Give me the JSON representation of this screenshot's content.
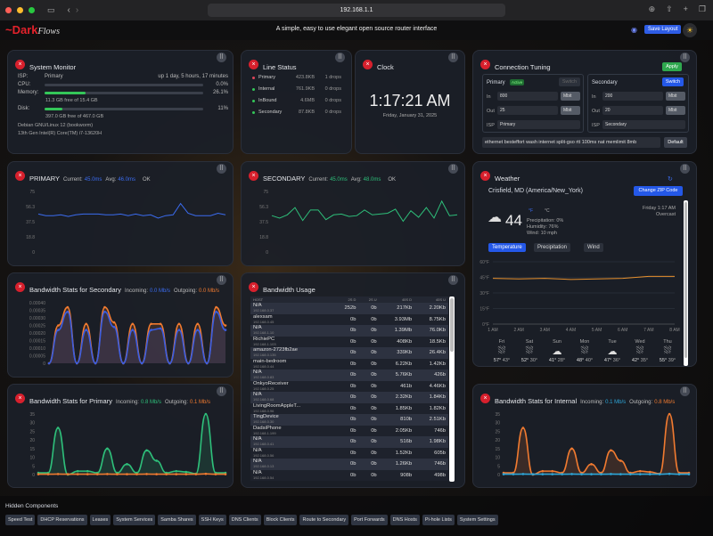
{
  "browser": {
    "url": "192.168.1.1"
  },
  "header": {
    "logo_red": "Dark",
    "logo_white": "Flows",
    "tagline": "A simple, easy to use elegant open source router interface",
    "save_layout": "Save Layout"
  },
  "system_monitor": {
    "title": "System Monitor",
    "isp_label": "ISP:",
    "isp_value": "Primary",
    "uptime": "up 1 day, 5 hours, 17 minutes",
    "cpu_label": "CPU:",
    "cpu_value": "0.0%",
    "cpu_percent": 0,
    "memory_label": "Memory:",
    "memory_value": "26.1%",
    "memory_percent": 26.1,
    "memory_sub": "11.3 GB free of 15.4 GB",
    "disk_label": "Disk:",
    "disk_value": "11%",
    "disk_percent": 11,
    "disk_sub": "397.0 GB free of 467.0 GB",
    "os": "Debian GNU/Linux 12 (bookworm)",
    "cpu_model": "13th Gen Intel(R) Core(TM) i7-13620H"
  },
  "line_status": {
    "title": "Line Status",
    "lines": [
      {
        "name": "Primary",
        "traffic": "423.8KB",
        "drops": "1 drops",
        "color": "#e0455a"
      },
      {
        "name": "Internal",
        "traffic": "761.9KB",
        "drops": "0 drops",
        "color": "#34c759"
      },
      {
        "name": "InBound",
        "traffic": "4.6MB",
        "drops": "0 drops",
        "color": "#34c759"
      },
      {
        "name": "Secondary",
        "traffic": "87.8KB",
        "drops": "0 drops",
        "color": "#34c759"
      }
    ]
  },
  "clock": {
    "title": "Clock",
    "time": "1:17:21 AM",
    "date": "Friday, January 31, 2025"
  },
  "tuning": {
    "title": "Connection Tuning",
    "apply": "Apply",
    "primary": {
      "name": "Primary",
      "badge": "Active",
      "switch": "Switch",
      "in_label": "In",
      "in": "800",
      "out_label": "Out",
      "out": "25",
      "unit": "Mbit",
      "isp_label": "ISP",
      "isp": "Primary"
    },
    "secondary": {
      "name": "Secondary",
      "switch": "Switch",
      "in_label": "In",
      "in": "200",
      "out_label": "Out",
      "out": "20",
      "unit": "Mbit",
      "isp_label": "ISP",
      "isp": "Secondary"
    },
    "params": "ethernet besteffort wash internet split-gso rtt 100ms  nat memlimit 8mb",
    "default": "Default"
  },
  "primary_latency": {
    "title": "PRIMARY",
    "current_label": "Current:",
    "current": "45.0ms",
    "avg_label": "Avg:",
    "avg": "46.0ms",
    "status": "OK"
  },
  "secondary_latency": {
    "title": "SECONDARY",
    "current_label": "Current:",
    "current": "45.0ms",
    "avg_label": "Avg:",
    "avg": "48.0ms",
    "status": "OK"
  },
  "bw_secondary": {
    "title": "Bandwidth Stats for Secondary",
    "in_label": "Incoming:",
    "in": "0.0 Mb/s",
    "out_label": "Outgoing:",
    "out": "0.0 Mb/s"
  },
  "bw_primary": {
    "title": "Bandwidth Stats for Primary",
    "in_label": "Incoming:",
    "in": "0.8 Mb/s",
    "out_label": "Outgoing:",
    "out": "0.1 Mb/s"
  },
  "bw_internal": {
    "title": "Bandwidth Stats for Internal",
    "in_label": "Incoming:",
    "in": "0.1 Mb/s",
    "out_label": "Outgoing:",
    "out": "0.8 Mb/s"
  },
  "bandwidth_usage": {
    "title": "Bandwidth Usage",
    "columns": [
      "HOST",
      "2S D",
      "2S U",
      "40S D",
      "40S U"
    ],
    "rows": [
      [
        "N/A",
        "192.168.0.37",
        "252b",
        "0b",
        "217Kb",
        "2.20Kb"
      ],
      [
        "alexsam",
        "192.168.0.45",
        "0b",
        "0b",
        "3.93Mb",
        "8.75Kb"
      ],
      [
        "N/A",
        "192.168.1.10",
        "0b",
        "0b",
        "1.39Mb",
        "76.0Kb"
      ],
      [
        "RichiePC",
        "192.168.1.103",
        "0b",
        "0b",
        "408Kb",
        "18.5Kb"
      ],
      [
        "amazon-2723fb2ae",
        "192.168.0.135",
        "0b",
        "0b",
        "339Kb",
        "26.4Kb"
      ],
      [
        "main-bedroom",
        "192.168.0.44",
        "0b",
        "0b",
        "6.22Kb",
        "1.42Kb"
      ],
      [
        "N/A",
        "192.168.0.83",
        "0b",
        "0b",
        "5.76Kb",
        "426b"
      ],
      [
        "OnkyoReceiver",
        "192.168.0.25",
        "0b",
        "0b",
        "461b",
        "4.46Kb"
      ],
      [
        "N/A",
        "192.168.0.68",
        "0b",
        "0b",
        "2.32Kb",
        "1.84Kb"
      ],
      [
        "LivingRoomAppleT...",
        "192.168.0.96",
        "0b",
        "0b",
        "1.85Kb",
        "1.82Kb"
      ],
      [
        "TingDevice",
        "192.168.0.30",
        "0b",
        "0b",
        "810b",
        "2.51Kb"
      ],
      [
        "DadsiPhone",
        "192.168.1.199",
        "0b",
        "0b",
        "2.05Kb",
        "746b"
      ],
      [
        "N/A",
        "192.168.0.41",
        "0b",
        "0b",
        "516b",
        "1.98Kb"
      ],
      [
        "N/A",
        "192.168.0.56",
        "0b",
        "0b",
        "1.52Kb",
        "605b"
      ],
      [
        "N/A",
        "192.168.0.13",
        "0b",
        "0b",
        "1.26Kb",
        "746b"
      ],
      [
        "N/A",
        "192.168.0.54",
        "0b",
        "0b",
        "908b",
        "498b"
      ]
    ]
  },
  "weather": {
    "title": "Weather",
    "location": "Crisfield, MD (America/New_York)",
    "change_zip": "Change ZIP Code",
    "temp": "44",
    "unit_f": "°F",
    "unit_c": "°C",
    "precip": "Precipitation: 0%",
    "humidity": "Humidity: 76%",
    "wind": "Wind: 10 mph",
    "day_time": "Friday 1:17 AM",
    "condition": "Overcast",
    "tabs": [
      "Temperature",
      "Precipitation",
      "Wind"
    ],
    "forecast": [
      {
        "day": "Fri",
        "hi": "57°",
        "lo": "43°",
        "icon": "rain"
      },
      {
        "day": "Sat",
        "hi": "52°",
        "lo": "30°",
        "icon": "rain"
      },
      {
        "day": "Sun",
        "hi": "41°",
        "lo": "28°",
        "icon": "cloud"
      },
      {
        "day": "Mon",
        "hi": "48°",
        "lo": "40°",
        "icon": "rain"
      },
      {
        "day": "Tue",
        "hi": "47°",
        "lo": "36°",
        "icon": "cloud"
      },
      {
        "day": "Wed",
        "hi": "42°",
        "lo": "35°",
        "icon": "rain"
      },
      {
        "day": "Thu",
        "hi": "55°",
        "lo": "39°",
        "icon": "rain"
      }
    ]
  },
  "hidden": {
    "title": "Hidden Components",
    "items": [
      "Speed Test",
      "DHCP Reservations",
      "Leases",
      "System Services",
      "Samba Shares",
      "SSH Keys",
      "DNS Clients",
      "Block Clients",
      "Route to Secondary",
      "Port Forwards",
      "DNS Hosts",
      "Pi-hole Lists",
      "System Settings"
    ]
  },
  "chart_data": [
    {
      "id": "primary_latency",
      "type": "line",
      "ylim": [
        0,
        75
      ],
      "yticks": [
        "0",
        "18.8",
        "37.5",
        "56.3",
        "75"
      ],
      "series": [
        {
          "color": "#3b6cf0",
          "values": [
            47,
            45,
            45,
            46,
            44,
            46,
            47,
            47,
            47,
            46,
            46,
            47,
            45,
            47,
            45,
            46,
            42,
            45,
            46,
            60,
            48,
            45,
            45,
            45,
            48,
            46
          ]
        }
      ]
    },
    {
      "id": "secondary_latency",
      "type": "line",
      "ylim": [
        0,
        75
      ],
      "yticks": [
        "0",
        "18.8",
        "37.5",
        "56.3",
        "75"
      ],
      "series": [
        {
          "color": "#2ebf7a",
          "values": [
            45,
            42,
            46,
            55,
            39,
            52,
            52,
            40,
            46,
            47,
            44,
            45,
            52,
            46,
            47,
            48,
            53,
            38,
            51,
            43,
            55,
            42,
            63,
            45,
            46
          ]
        }
      ]
    },
    {
      "id": "bw_secondary",
      "type": "area",
      "ylim": [
        0,
        0.0004
      ],
      "yticks": [
        "0",
        "0.00005",
        "0.00010",
        "0.00015",
        "0.00020",
        "0.00025",
        "0.00030",
        "0.00035",
        "0.00040"
      ],
      "series": [
        {
          "color": "#f07a30",
          "values": [
            0,
            0.00025,
            0.00037,
            0,
            0.00026,
            0,
            0.00037,
            0.00027,
            0,
            0.00026,
            0,
            0.00026,
            0.00026,
            0,
            0.00026,
            0,
            0.00026,
            0,
            0.00037,
            0.00025
          ]
        },
        {
          "color": "#3b5de0",
          "values": [
            0,
            0.00022,
            0.00034,
            0,
            0.00022,
            0,
            0.00034,
            0.00024,
            0,
            0.00022,
            0,
            0.00022,
            0.00023,
            0,
            0.00022,
            0,
            0.00022,
            0,
            0.00034,
            0.00022
          ]
        }
      ]
    },
    {
      "id": "bw_primary",
      "type": "area",
      "ylim": [
        0,
        35
      ],
      "yticks": [
        "0",
        "5",
        "10",
        "15",
        "20",
        "25",
        "30",
        "35"
      ],
      "series": [
        {
          "color": "#2ebf7a",
          "values": [
            1,
            1,
            27,
            0,
            2,
            2,
            1,
            15,
            1,
            6,
            1,
            14,
            8,
            1,
            2,
            1.5,
            0.5,
            35,
            1,
            1
          ]
        },
        {
          "color": "#f07a30",
          "values": [
            0.2,
            0.2,
            0.3,
            0.2,
            0.2,
            0.2,
            0.2,
            0.3,
            0.2,
            0.2,
            0.2,
            0.3,
            0.2,
            0.2,
            0.2,
            0.2,
            0.2,
            0.4,
            0.2,
            0.2
          ]
        }
      ]
    },
    {
      "id": "bw_internal",
      "type": "area",
      "ylim": [
        0,
        35
      ],
      "yticks": [
        "0",
        "5",
        "10",
        "15",
        "20",
        "25",
        "30",
        "35"
      ],
      "series": [
        {
          "color": "#f07a30",
          "values": [
            1,
            1,
            27,
            0,
            2,
            2,
            1,
            15,
            1,
            6,
            1,
            14,
            8,
            1,
            2,
            1.5,
            0.5,
            35,
            1,
            1
          ]
        },
        {
          "color": "#2ea6d8",
          "values": [
            0.2,
            0.2,
            0.3,
            0.2,
            0.2,
            0.2,
            0.2,
            0.3,
            0.2,
            0.2,
            0.2,
            0.3,
            0.2,
            0.2,
            0.2,
            0.2,
            0.2,
            0.4,
            0.2,
            0.2
          ]
        }
      ]
    },
    {
      "id": "weather_temp",
      "type": "line",
      "ylim": [
        0,
        60
      ],
      "yticks": [
        "0°F",
        "15°F",
        "30°F",
        "45°F",
        "60°F"
      ],
      "xticks": [
        "1 AM",
        "2 AM",
        "3 AM",
        "4 AM",
        "5 AM",
        "6 AM",
        "7 AM",
        "8 AM"
      ],
      "series": [
        {
          "color": "#e8912e",
          "values": [
            44,
            43.5,
            44,
            43,
            43.5,
            44,
            46,
            46
          ]
        }
      ]
    }
  ]
}
